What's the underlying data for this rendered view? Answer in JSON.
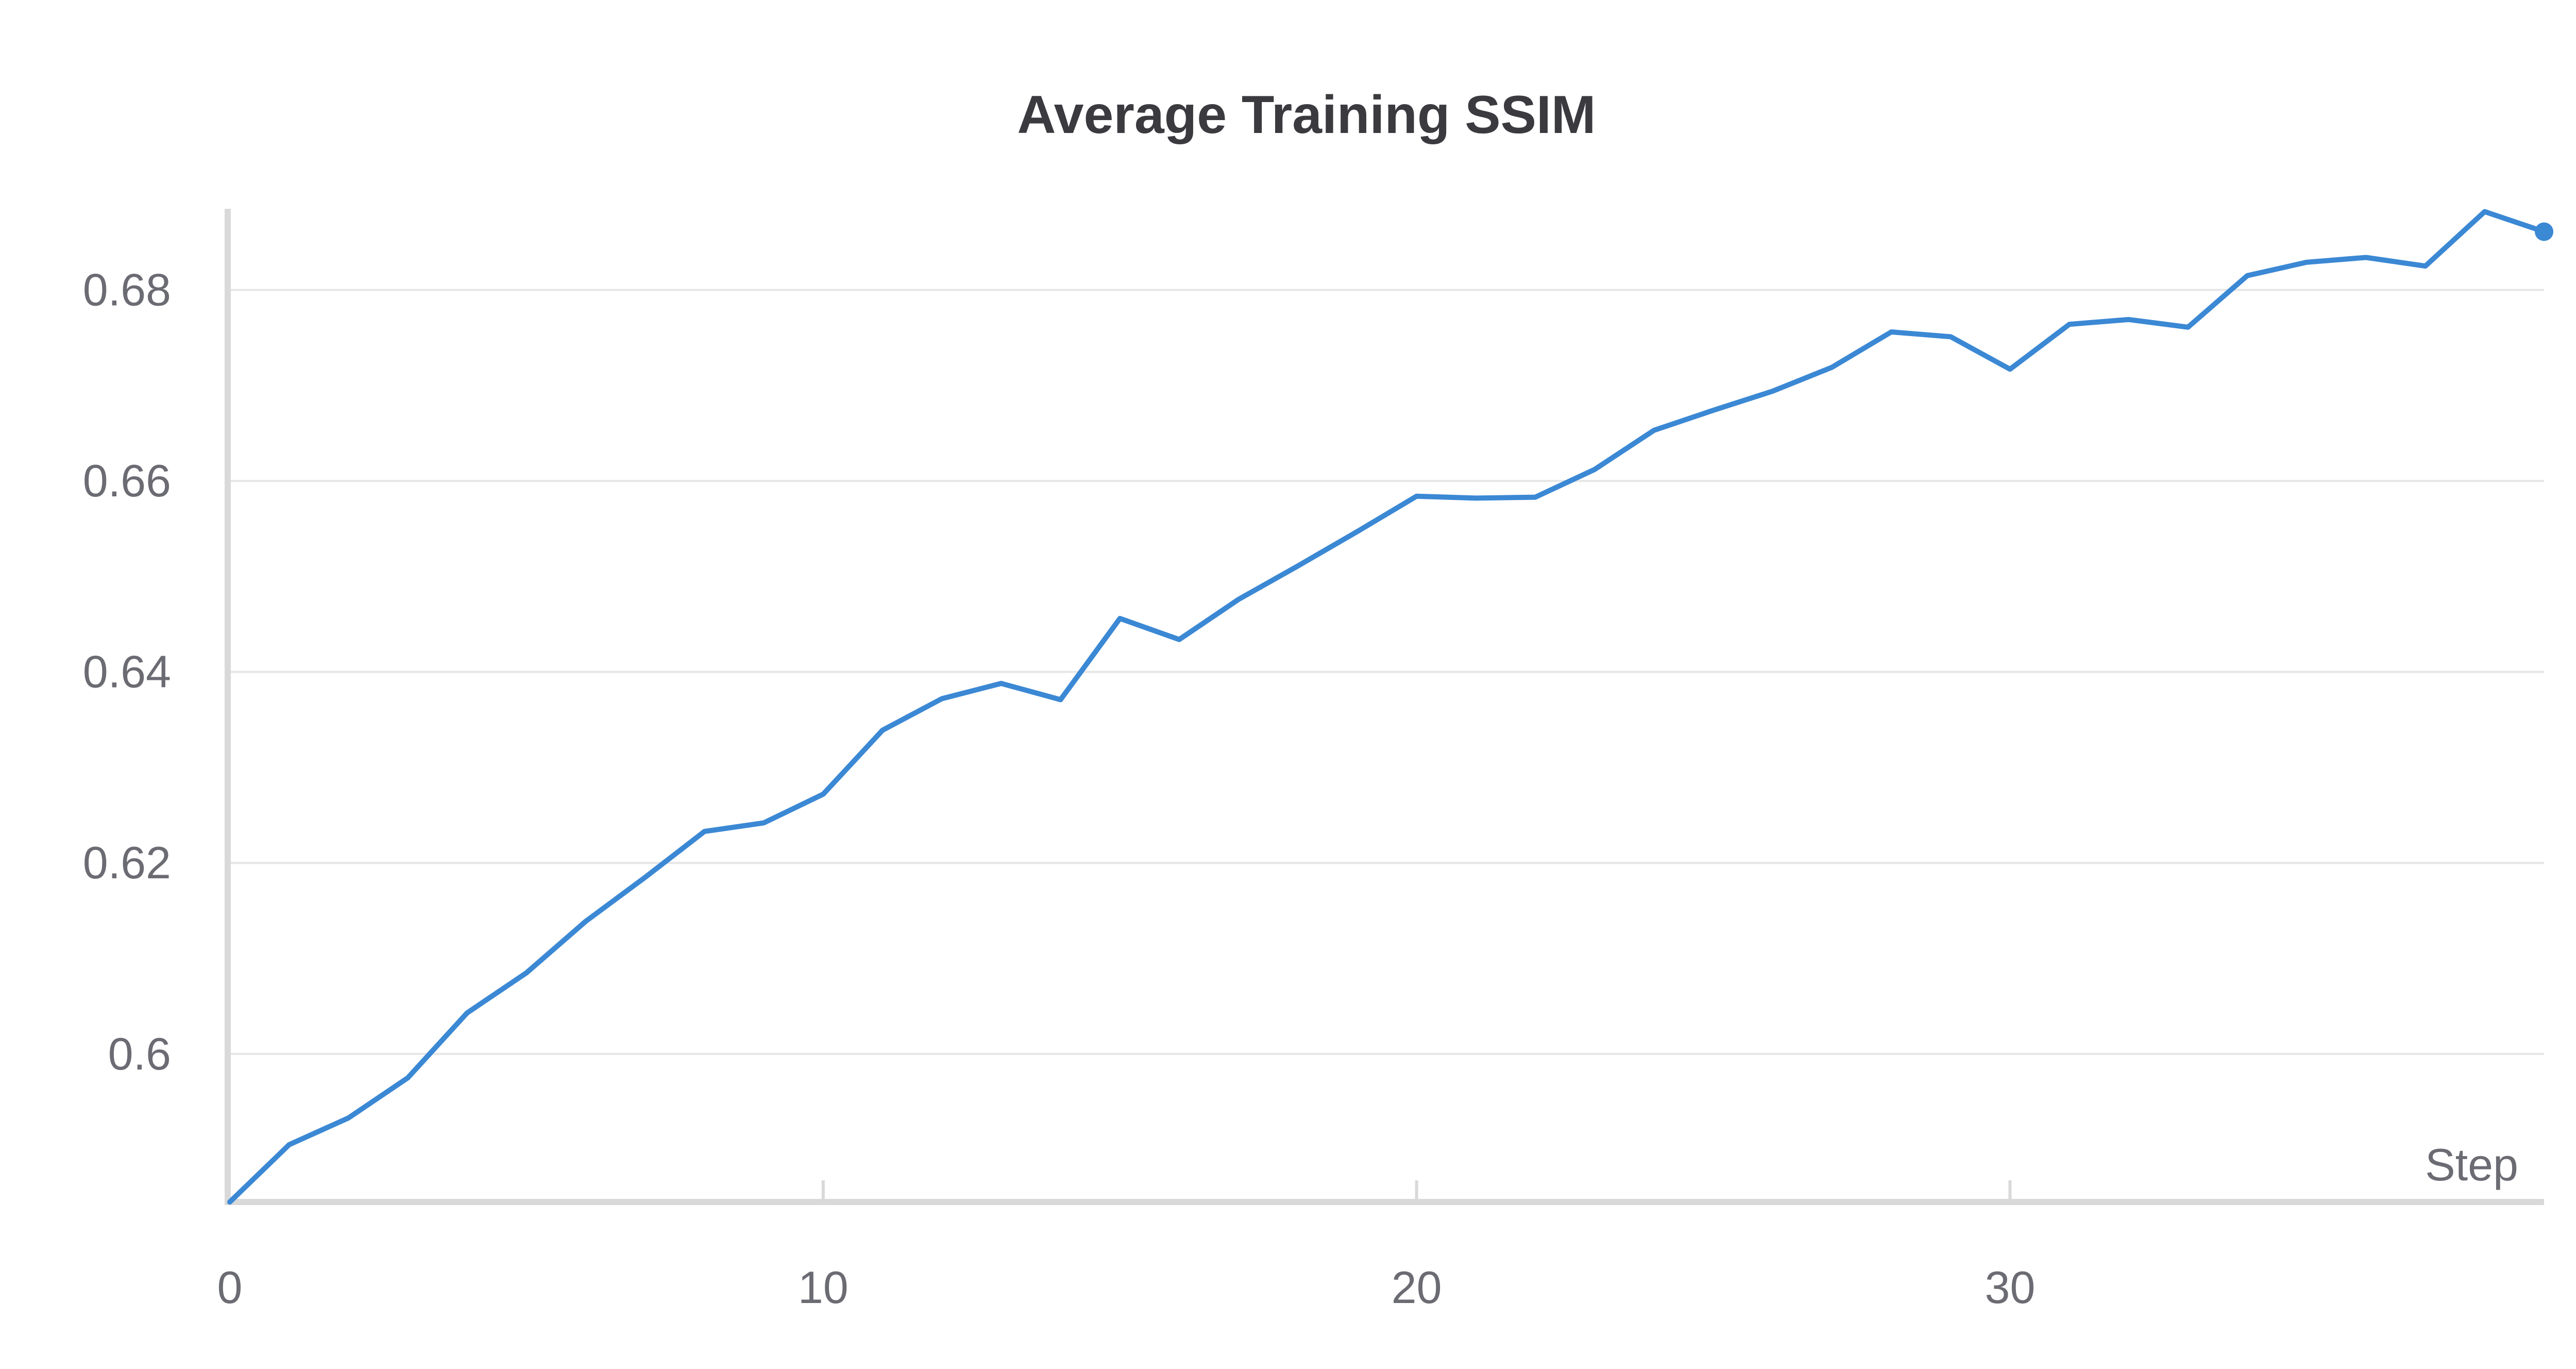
{
  "chart_data": {
    "type": "line",
    "title": "Average Training SSIM",
    "xlabel": "Step",
    "ylabel": "",
    "xlim": [
      0,
      39
    ],
    "ylim": [
      0.5845,
      0.6885
    ],
    "x_ticks": [
      0,
      10,
      20,
      30
    ],
    "y_ticks": [
      0.6,
      0.62,
      0.64,
      0.66,
      0.68
    ],
    "y_tick_labels": [
      "0.6",
      "0.62",
      "0.64",
      "0.66",
      "0.68"
    ],
    "grid": true,
    "legend": "none",
    "colors": {
      "line": "#3b88d4",
      "grid": "#e6e6e6",
      "axis": "#d9d9d9"
    },
    "series": [
      {
        "x": [
          0,
          1,
          2,
          3,
          4,
          5,
          6,
          7,
          8,
          9,
          10,
          11,
          12,
          13,
          14,
          15,
          16,
          17,
          18,
          19,
          20,
          21,
          22,
          23,
          24,
          25,
          26,
          27,
          28,
          29,
          30,
          31,
          32,
          33,
          34,
          35,
          36,
          37,
          38,
          39
        ],
        "values": [
          0.5845,
          0.5905,
          0.5933,
          0.5975,
          0.6043,
          0.6085,
          0.6139,
          0.6185,
          0.6233,
          0.6242,
          0.6272,
          0.6339,
          0.6372,
          0.6388,
          0.6371,
          0.6456,
          0.6434,
          0.6476,
          0.6511,
          0.6547,
          0.6584,
          0.6582,
          0.6583,
          0.6612,
          0.6653,
          0.6674,
          0.6694,
          0.6719,
          0.6756,
          0.6751,
          0.6717,
          0.6764,
          0.6769,
          0.6761,
          0.6815,
          0.6829,
          0.6834,
          0.6825,
          0.6882,
          0.6861
        ]
      }
    ]
  }
}
